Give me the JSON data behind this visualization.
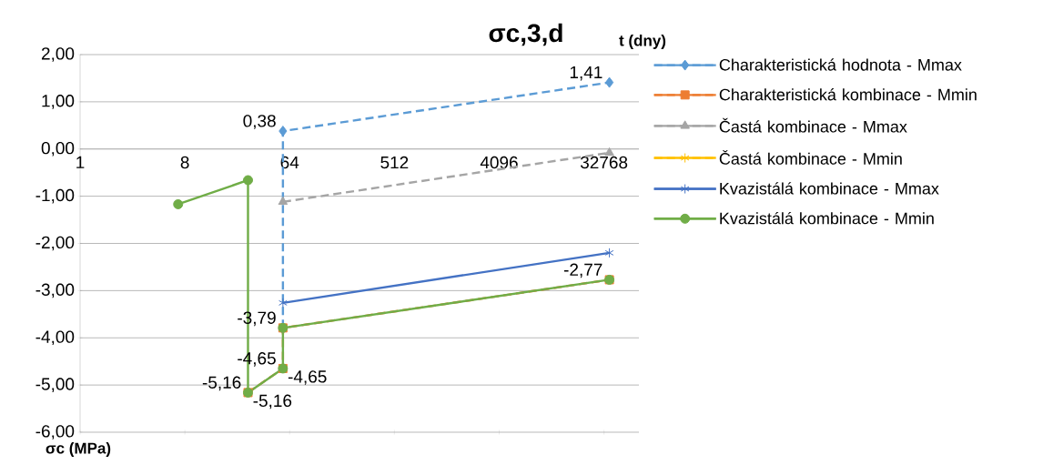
{
  "chart_data": {
    "type": "line",
    "title": "σc,3,d",
    "xlabel": "t (dny)",
    "ylabel": "σc (MPa)",
    "log": "x",
    "xlim": [
      1,
      65536
    ],
    "xticks": [
      1,
      8,
      64,
      512,
      4096,
      32768
    ],
    "ylim": [
      -6,
      2
    ],
    "yticks": [
      {
        "value": -6,
        "label": "-6,00"
      },
      {
        "value": -5,
        "label": "-5,00"
      },
      {
        "value": -4,
        "label": "-4,00"
      },
      {
        "value": -3,
        "label": "-3,00"
      },
      {
        "value": -2,
        "label": "-2,00"
      },
      {
        "value": -1,
        "label": "-1,00"
      },
      {
        "value": 0,
        "label": "0,00"
      },
      {
        "value": 1,
        "label": "1,00"
      },
      {
        "value": 2,
        "label": "2,00"
      }
    ],
    "grid": "y",
    "legend": "right",
    "series": [
      {
        "name": "Charakteristická hodnota - Mmax",
        "color": "#5b9bd5",
        "line_style": "dashed",
        "marker": "diamond",
        "x": [
          56,
          56,
          36500
        ],
        "values": [
          -3.79,
          0.38,
          1.41
        ],
        "value_labels": [
          null,
          "0,38",
          "1,41"
        ]
      },
      {
        "name": "Charakteristická kombinace - Mmin",
        "color": "#ed7d31",
        "line_style": "dashed",
        "marker": "square",
        "x": [
          28,
          56,
          56,
          36500
        ],
        "values": [
          -5.16,
          -4.65,
          -3.79,
          -2.77
        ],
        "value_labels": [
          "-5,16",
          "-4,65",
          "-3,79",
          "-2,77"
        ]
      },
      {
        "name": "Častá kombinace - Mmax",
        "color": "#a5a5a5",
        "line_style": "dashed",
        "marker": "triangle",
        "x": [
          56,
          36500
        ],
        "values": [
          -1.12,
          -0.08
        ]
      },
      {
        "name": "Častá kombinace - Mmin",
        "color": "#ffc000",
        "line_style": "dashed",
        "marker": "cross",
        "values": [
          null,
          null
        ]
      },
      {
        "name": "Kvazistálá kombinace - Mmax",
        "color": "#4472c4",
        "line_style": "solid",
        "marker": "cross",
        "x": [
          56,
          36500
        ],
        "values": [
          -3.26,
          -2.2
        ]
      },
      {
        "name": "Kvazistálá kombinace - Mmin",
        "color": "#70ad47",
        "line_style": "solid",
        "marker": "circle",
        "x": [
          7,
          28,
          28,
          56,
          56,
          36500
        ],
        "values": [
          -1.17,
          -0.66,
          -5.16,
          -4.65,
          -3.79,
          -2.77
        ],
        "value_labels": [
          null,
          null,
          "-5,16",
          "-4,65",
          null,
          null
        ]
      }
    ]
  }
}
